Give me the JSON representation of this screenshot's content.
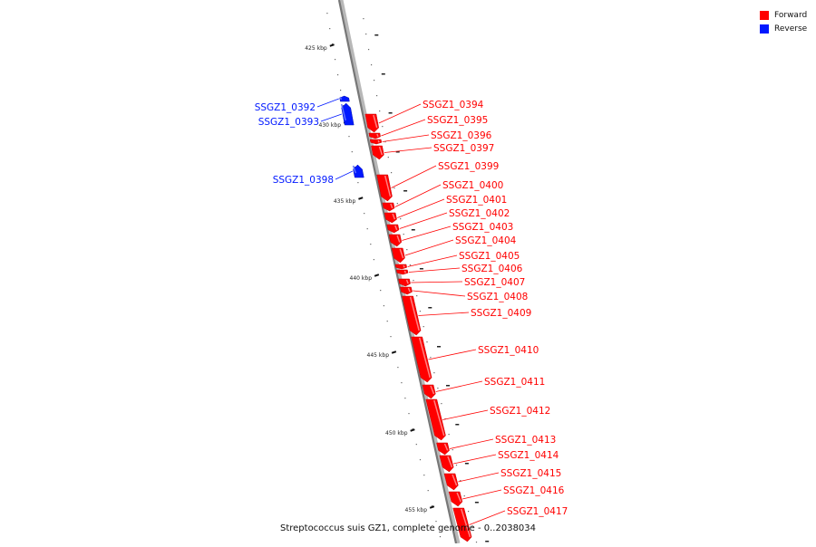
{
  "caption": "Streptococcus suis GZ1, complete genome - 0..2038034",
  "legend": {
    "forward": {
      "label": "Forward",
      "color": "#ff0000"
    },
    "reverse": {
      "label": "Reverse",
      "color": "#0018ff"
    }
  },
  "genome_track": {
    "tick_labels": [
      "425 kbp",
      "430 kbp",
      "435 kbp",
      "440 kbp",
      "445 kbp",
      "450 kbp",
      "455 kbp"
    ]
  },
  "genes": [
    {
      "name": "SSGZ1_0392",
      "strand": "reverse"
    },
    {
      "name": "SSGZ1_0393",
      "strand": "reverse"
    },
    {
      "name": "SSGZ1_0394",
      "strand": "forward"
    },
    {
      "name": "SSGZ1_0395",
      "strand": "forward"
    },
    {
      "name": "SSGZ1_0396",
      "strand": "forward"
    },
    {
      "name": "SSGZ1_0397",
      "strand": "forward"
    },
    {
      "name": "SSGZ1_0398",
      "strand": "reverse"
    },
    {
      "name": "SSGZ1_0399",
      "strand": "forward"
    },
    {
      "name": "SSGZ1_0400",
      "strand": "forward"
    },
    {
      "name": "SSGZ1_0401",
      "strand": "forward"
    },
    {
      "name": "SSGZ1_0402",
      "strand": "forward"
    },
    {
      "name": "SSGZ1_0403",
      "strand": "forward"
    },
    {
      "name": "SSGZ1_0404",
      "strand": "forward"
    },
    {
      "name": "SSGZ1_0405",
      "strand": "forward"
    },
    {
      "name": "SSGZ1_0406",
      "strand": "forward"
    },
    {
      "name": "SSGZ1_0407",
      "strand": "forward"
    },
    {
      "name": "SSGZ1_0408",
      "strand": "forward"
    },
    {
      "name": "SSGZ1_0409",
      "strand": "forward"
    },
    {
      "name": "SSGZ1_0410",
      "strand": "forward"
    },
    {
      "name": "SSGZ1_0411",
      "strand": "forward"
    },
    {
      "name": "SSGZ1_0412",
      "strand": "forward"
    },
    {
      "name": "SSGZ1_0413",
      "strand": "forward"
    },
    {
      "name": "SSGZ1_0414",
      "strand": "forward"
    },
    {
      "name": "SSGZ1_0415",
      "strand": "forward"
    },
    {
      "name": "SSGZ1_0416",
      "strand": "forward"
    },
    {
      "name": "SSGZ1_0417",
      "strand": "forward"
    }
  ]
}
